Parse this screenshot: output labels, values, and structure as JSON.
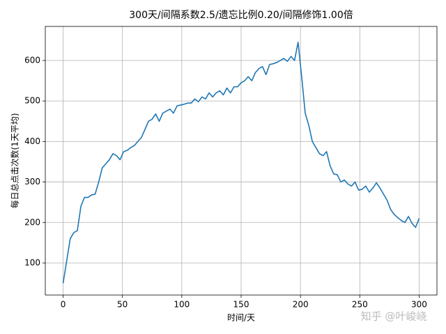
{
  "chart_data": {
    "type": "line",
    "title": "300天/间隔系数2.5/遗忘比例0.20/间隔修饰1.00倍",
    "x_label": "时间/天",
    "y_label": "每日总点击次数(1天平均)",
    "annotation": "知乎 @叶峻峣",
    "x": [
      0,
      3,
      6,
      9,
      12,
      15,
      18,
      21,
      24,
      27,
      30,
      33,
      36,
      39,
      42,
      45,
      48,
      51,
      54,
      57,
      60,
      63,
      66,
      69,
      72,
      75,
      78,
      81,
      84,
      87,
      90,
      93,
      96,
      99,
      102,
      105,
      108,
      111,
      114,
      117,
      120,
      123,
      126,
      129,
      132,
      135,
      138,
      141,
      144,
      147,
      150,
      153,
      156,
      159,
      162,
      165,
      168,
      171,
      174,
      177,
      180,
      183,
      186,
      189,
      192,
      195,
      198,
      201,
      204,
      207,
      210,
      213,
      216,
      219,
      222,
      225,
      228,
      231,
      234,
      237,
      240,
      243,
      246,
      249,
      252,
      255,
      258,
      261,
      264,
      267,
      270,
      273,
      276,
      279,
      282,
      285,
      288,
      291,
      294,
      297,
      300
    ],
    "series": [
      {
        "name": "每日总点击次数",
        "color": "#1f77b4",
        "values": [
          50,
          105,
          160,
          175,
          180,
          240,
          262,
          262,
          268,
          270,
          300,
          335,
          345,
          355,
          370,
          365,
          355,
          375,
          378,
          385,
          390,
          400,
          410,
          430,
          450,
          455,
          468,
          450,
          470,
          475,
          480,
          470,
          488,
          490,
          492,
          495,
          495,
          505,
          498,
          510,
          505,
          520,
          510,
          520,
          525,
          515,
          532,
          520,
          535,
          535,
          545,
          550,
          560,
          550,
          570,
          580,
          585,
          565,
          590,
          592,
          595,
          600,
          605,
          598,
          610,
          600,
          645,
          560,
          470,
          440,
          400,
          385,
          370,
          365,
          375,
          340,
          320,
          318,
          300,
          305,
          295,
          290,
          300,
          280,
          282,
          290,
          275,
          285,
          298,
          285,
          270,
          255,
          232,
          220,
          212,
          205,
          200,
          215,
          198,
          188,
          210
        ]
      }
    ],
    "xlim": [
      -15,
      315
    ],
    "ylim": [
      21,
      684
    ],
    "xticks": [
      0,
      50,
      100,
      150,
      200,
      250,
      300
    ],
    "yticks": [
      100,
      200,
      300,
      400,
      500,
      600
    ],
    "grid": true
  }
}
